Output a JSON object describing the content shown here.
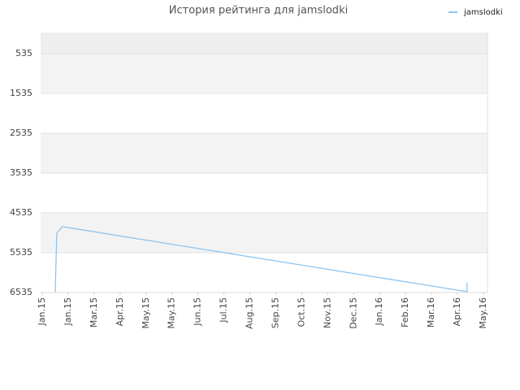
{
  "chart_data": {
    "type": "line",
    "title": "История рейтинга для jamslodki",
    "x": [
      0.5,
      0.56,
      0.69,
      0.78,
      16.37,
      16.37
    ],
    "series": [
      {
        "name": "jamslodki",
        "color": "#8ec4ee",
        "values": [
          6535,
          5045,
          4943,
          4882,
          6515,
          6290
        ]
      }
    ],
    "xlim": [
      0,
      17
    ],
    "xticks": [
      {
        "value": 0,
        "label": "Jan.15"
      },
      {
        "value": 1,
        "label": "Jan.15"
      },
      {
        "value": 2,
        "label": "Mar.15"
      },
      {
        "value": 3,
        "label": "Apr.15"
      },
      {
        "value": 4,
        "label": "May.15"
      },
      {
        "value": 5,
        "label": "May.15"
      },
      {
        "value": 6,
        "label": "Jun.15"
      },
      {
        "value": 7,
        "label": "Jul.15"
      },
      {
        "value": 8,
        "label": "Aug.15"
      },
      {
        "value": 9,
        "label": "Sep.15"
      },
      {
        "value": 10,
        "label": "Oct.15"
      },
      {
        "value": 11,
        "label": "Nov.15"
      },
      {
        "value": 12,
        "label": "Dec.15"
      },
      {
        "value": 13,
        "label": "Jan.16"
      },
      {
        "value": 14,
        "label": "Feb.16"
      },
      {
        "value": 15,
        "label": "Mar.16"
      },
      {
        "value": 16,
        "label": "Apr.16"
      },
      {
        "value": 17,
        "label": "May.16"
      }
    ],
    "ylim": [
      6535,
      4
    ],
    "yticks": [
      535,
      1535,
      2535,
      3535,
      4535,
      5535,
      6535
    ],
    "grid": true,
    "legend": "top-right"
  }
}
